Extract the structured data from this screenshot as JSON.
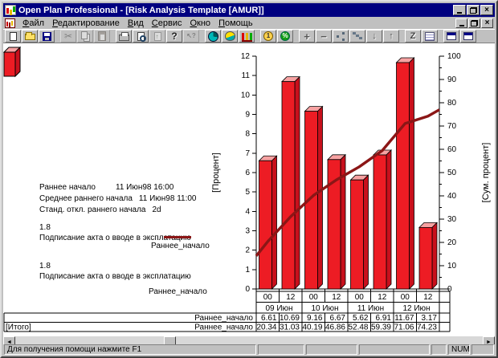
{
  "window": {
    "title": "Open Plan Professional - [Risk Analysis Template [AMUR]]",
    "statusbar": {
      "message": "Для получения помощи нажмите F1",
      "keyboard_indicator": "NUM"
    }
  },
  "menu": {
    "items": [
      {
        "id": "file",
        "label": "Файл"
      },
      {
        "id": "edit",
        "label": "Редактирование"
      },
      {
        "id": "view",
        "label": "Вид"
      },
      {
        "id": "service",
        "label": "Сервис"
      },
      {
        "id": "window",
        "label": "Окно"
      },
      {
        "id": "help",
        "label": "Помощь"
      }
    ]
  },
  "toolbar": {
    "buttons": [
      {
        "name": "new-document"
      },
      {
        "name": "open-folder"
      },
      {
        "name": "save"
      },
      {
        "name": "cut",
        "glyph": "✂",
        "enabled": false,
        "gap": true
      },
      {
        "name": "copy",
        "enabled": false
      },
      {
        "name": "paste",
        "enabled": false
      },
      {
        "name": "print",
        "gap": true
      },
      {
        "name": "print-preview"
      },
      {
        "name": "import-sheet",
        "enabled": false
      },
      {
        "name": "help",
        "glyph": "?"
      },
      {
        "name": "context-help",
        "glyph": "↖?",
        "enabled": false
      },
      {
        "name": "time-analysis",
        "gap": true
      },
      {
        "name": "risk-analysis"
      },
      {
        "name": "histogram"
      },
      {
        "name": "cost",
        "glyph": "1",
        "gap": true
      },
      {
        "name": "percent",
        "glyph": "%"
      },
      {
        "name": "add",
        "glyph": "+",
        "gap": true
      },
      {
        "name": "remove",
        "glyph": "−"
      },
      {
        "name": "network-view"
      },
      {
        "name": "step-chart"
      },
      {
        "name": "move-down",
        "glyph": "↓"
      },
      {
        "name": "move-up",
        "glyph": "↑"
      },
      {
        "name": "sort",
        "glyph": "Z",
        "gap": true
      },
      {
        "name": "spreadsheet"
      },
      {
        "name": "window-cascade",
        "gap": true
      },
      {
        "name": "window-tile"
      }
    ]
  },
  "info_panel": {
    "rows": [
      {
        "label": "Раннее начало",
        "value": "11 Июн98 16:00"
      },
      {
        "label": "Среднее раннего начала",
        "value": "11 Июн98 11:00"
      },
      {
        "label": "Станд. откл.  раннего начала",
        "value": "2d"
      }
    ]
  },
  "legend": {
    "entries": [
      {
        "code": "1.8",
        "activity": "Подписание акта о вводе в эксплатацию",
        "series": "Раннее_начало",
        "swatch": "line"
      },
      {
        "code": "1.8",
        "activity": "Подписание акта о вводе в эксплатацию",
        "series": "Раннее_начало",
        "swatch": "bar"
      }
    ]
  },
  "chart_data": {
    "type": "bar",
    "title": "",
    "categories": [
      "09 Июн 00",
      "09 Июн 12",
      "10 Июн 00",
      "10 Июн 12",
      "11 Июн 00",
      "11 Июн 12",
      "12 Июн 00",
      "12 Июн 12"
    ],
    "x_hour_labels": [
      "00",
      "12",
      "00",
      "12",
      "00",
      "12",
      "00",
      "12"
    ],
    "x_date_groups": [
      "09 Июн",
      "10 Июн",
      "11 Июн",
      "12 Июн"
    ],
    "series": [
      {
        "name": "Раннее_начало",
        "type": "bar",
        "axis": "left",
        "values": [
          6.61,
          10.69,
          9.16,
          6.67,
          5.62,
          6.91,
          11.67,
          3.17
        ]
      },
      {
        "name": "Раннее_начало",
        "type": "line",
        "axis": "right",
        "values": [
          20.34,
          31.03,
          40.19,
          46.86,
          52.48,
          59.39,
          71.06,
          74.23
        ],
        "edge_values": [
          14.2,
          77.0
        ]
      }
    ],
    "ylabel_left": "[Процент]",
    "ylabel_right": "[Сум. процент]",
    "ylim_left": [
      0,
      12
    ],
    "ylim_right": [
      0,
      100
    ],
    "ytick_step_left": 1,
    "ytick_major_right": 10,
    "ytick_minor_right": 5,
    "grid": false,
    "legend_position": "left"
  },
  "table": {
    "row_labels": [
      "Раннее_начало",
      "Раннее_начало"
    ],
    "total_label": "[Итого]"
  },
  "colors": {
    "titlebar": "#000080",
    "bar_front": "#ed1c24",
    "bar_top": "#f7a2a2",
    "bar_side": "#c8101c",
    "curve": "#8b1616",
    "chrome": "#c0c0c0"
  }
}
